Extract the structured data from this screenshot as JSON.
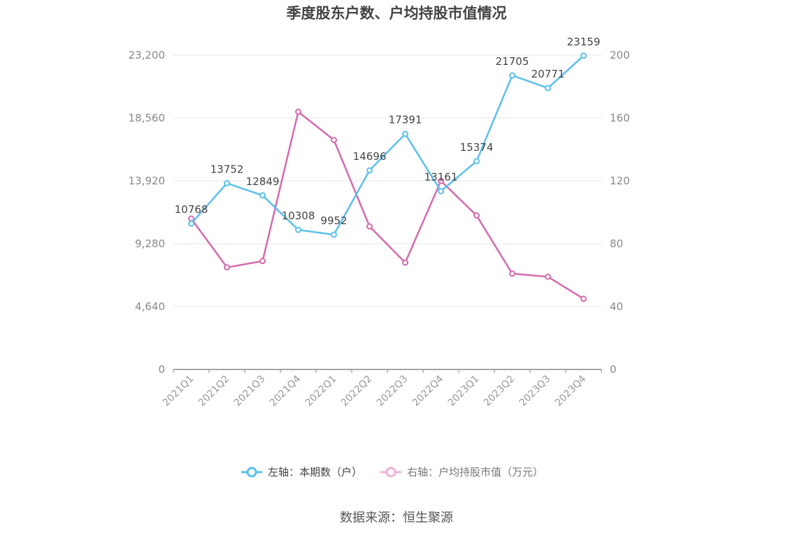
{
  "chart_data": {
    "type": "line",
    "title": "季度股东户数、户均持股市值情况",
    "categories": [
      "2021Q1",
      "2021Q2",
      "2021Q3",
      "2021Q4",
      "2022Q1",
      "2022Q2",
      "2022Q3",
      "2022Q4",
      "2023Q1",
      "2023Q2",
      "2023Q3",
      "2023Q4"
    ],
    "series": [
      {
        "name": "左轴：本期数（户）",
        "axis": "left",
        "color": "#5bc0eb",
        "values": [
          10768,
          13752,
          12849,
          10308,
          9952,
          14696,
          17391,
          13161,
          15374,
          21705,
          20771,
          23159
        ],
        "labels": [
          "10768",
          "13752",
          "12849",
          "10308",
          "9952",
          "14696",
          "17391",
          "13161",
          "15374",
          "21705",
          "20771",
          "23159"
        ]
      },
      {
        "name": "右轴：户均持股市值（万元）",
        "axis": "right",
        "color": "#d46aae",
        "values": [
          96,
          65,
          69,
          164,
          146,
          91,
          68,
          120,
          98,
          61,
          59,
          45
        ]
      }
    ],
    "left_axis": {
      "min": 0,
      "max": 23200,
      "ticks": [
        "0",
        "4,640",
        "9,280",
        "13,920",
        "18,560",
        "23,200"
      ]
    },
    "right_axis": {
      "min": 0,
      "max": 200,
      "ticks": [
        "0",
        "40",
        "80",
        "120",
        "160",
        "200"
      ]
    },
    "grid": true,
    "legend_position": "bottom"
  },
  "source": "数据来源：恒生聚源"
}
